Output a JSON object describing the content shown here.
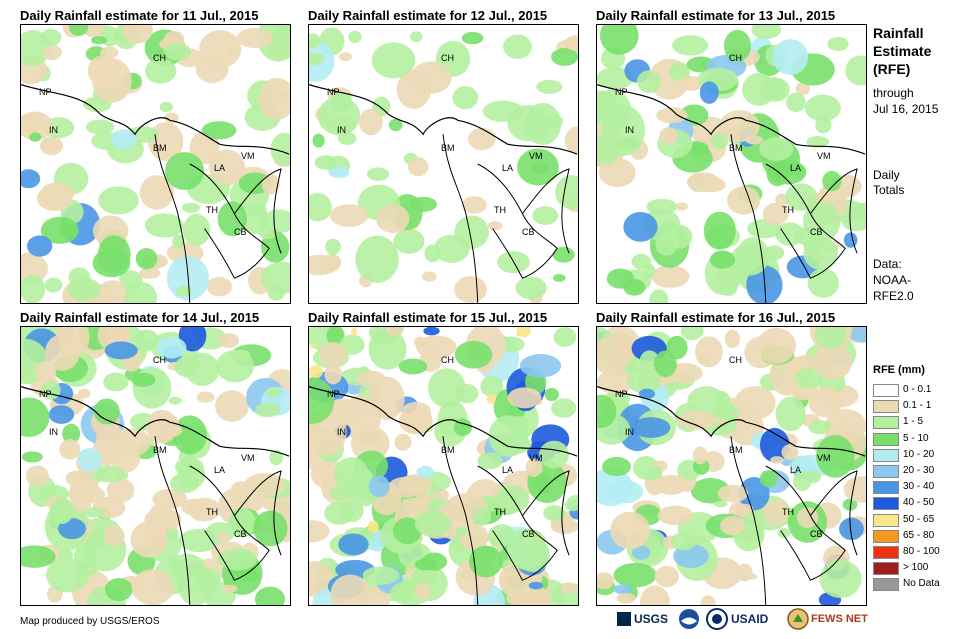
{
  "panels": [
    {
      "title": "Daily Rainfall estimate for 11 Jul., 2015",
      "intensity": 1
    },
    {
      "title": "Daily Rainfall estimate for 12 Jul., 2015",
      "intensity": 0
    },
    {
      "title": "Daily Rainfall estimate for 13 Jul., 2015",
      "intensity": 1
    },
    {
      "title": "Daily Rainfall estimate for 14 Jul., 2015",
      "intensity": 2
    },
    {
      "title": "Daily Rainfall estimate for 15 Jul., 2015",
      "intensity": 3
    },
    {
      "title": "Daily Rainfall estimate for 16 Jul., 2015",
      "intensity": 2
    }
  ],
  "country_labels": [
    "CH",
    "NP",
    "IN",
    "BM",
    "LA",
    "VM",
    "TH",
    "CB"
  ],
  "side": {
    "title_lines": [
      "Rainfall",
      "Estimate",
      "(RFE)"
    ],
    "through": "through",
    "date": "Jul 16, 2015",
    "daily": "Daily",
    "totals": "Totals",
    "data": "Data:",
    "source1": "NOAA-",
    "source2": "RFE2.0"
  },
  "legend": {
    "title": "RFE (mm)",
    "items": [
      {
        "label": "0 - 0.1",
        "color": "#ffffff"
      },
      {
        "label": "0.1 - 1",
        "color": "#ecd9b6"
      },
      {
        "label": "1 - 5",
        "color": "#b4f0a0"
      },
      {
        "label": "5 - 10",
        "color": "#78e06a"
      },
      {
        "label": "10 - 20",
        "color": "#b4ecf4"
      },
      {
        "label": "20 - 30",
        "color": "#8cc8f0"
      },
      {
        "label": "30 - 40",
        "color": "#4a96e6"
      },
      {
        "label": "40 - 50",
        "color": "#1e5adc"
      },
      {
        "label": "50 - 65",
        "color": "#fae68c"
      },
      {
        "label": "65 - 80",
        "color": "#f59a1e"
      },
      {
        "label": "80 - 100",
        "color": "#f03214"
      },
      {
        "label": "> 100",
        "color": "#a01e1e"
      },
      {
        "label": "No Data",
        "color": "#999999"
      }
    ]
  },
  "footer": "Map produced by USGS/EROS",
  "logos": [
    "USGS",
    "USAID",
    "FEWS NET"
  ]
}
